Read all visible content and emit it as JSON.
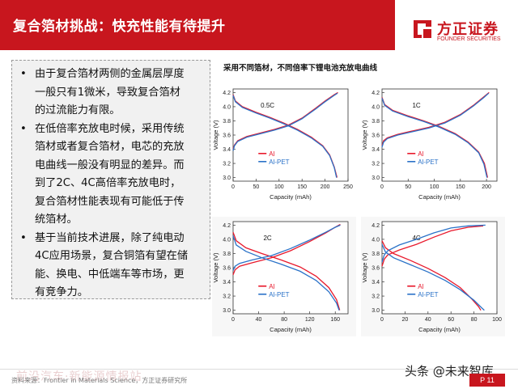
{
  "header": {
    "title": "复合箔材挑战：快充性能有待提升"
  },
  "logo": {
    "name_cn": "方正证券",
    "name_en": "FOUNDER SECURITIES",
    "brand_color": "#c8161e"
  },
  "bullets": [
    {
      "marker": "•",
      "lines": [
        "由于复合箔材两侧的金属层厚度",
        "一般只有1微米，导致复合箔材",
        "的过流能力有限。"
      ]
    },
    {
      "marker": "•",
      "lines": [
        "在低倍率充放电时候，采用传统",
        "箔材或者复合箔材，电芯的充放",
        "电曲线一般没有明显的差异。而",
        "到了2C、4C高倍率充放电时，",
        "复合箔材性能表现有可能低于传",
        "统箔材。"
      ]
    },
    {
      "marker": "•",
      "lines": [
        "基于当前技术进展，除了纯电动",
        "4C应用场景，复合铜箔有望在储",
        "能、换电、中低端车等市场，更",
        "有竞争力。"
      ]
    }
  ],
  "figure": {
    "title": "采用不同箔材，不同倍率下锂电池充放电曲线"
  },
  "chart_data": [
    {
      "type": "line",
      "title": "0.5C",
      "xlabel": "Capacity (mAh)",
      "ylabel": "Voltage (V)",
      "xlim": [
        0,
        250
      ],
      "ylim": [
        2.95,
        4.25
      ],
      "xticks": [
        "0",
        "50",
        "100",
        "150",
        "200",
        "250"
      ],
      "yticks": [
        "3.0",
        "3.2",
        "3.4",
        "3.6",
        "3.8",
        "4.0",
        "4.2"
      ],
      "legend": [
        "Al",
        "Al-PET"
      ],
      "legend_position": "bottom-left",
      "series": [
        {
          "name": "Al",
          "color": "#e8192c",
          "curves": [
            [
              [
                0,
                3.4
              ],
              [
                3,
                3.46
              ],
              [
                10,
                3.52
              ],
              [
                30,
                3.58
              ],
              [
                60,
                3.63
              ],
              [
                90,
                3.68
              ],
              [
                120,
                3.74
              ],
              [
                150,
                3.84
              ],
              [
                180,
                3.98
              ],
              [
                200,
                4.08
              ],
              [
                220,
                4.17
              ],
              [
                228,
                4.2
              ]
            ],
            [
              [
                0,
                4.17
              ],
              [
                5,
                4.08
              ],
              [
                20,
                4.0
              ],
              [
                50,
                3.92
              ],
              [
                80,
                3.85
              ],
              [
                110,
                3.77
              ],
              [
                140,
                3.68
              ],
              [
                170,
                3.57
              ],
              [
                195,
                3.45
              ],
              [
                210,
                3.32
              ],
              [
                220,
                3.15
              ],
              [
                226,
                3.0
              ]
            ]
          ]
        },
        {
          "name": "Al-PET",
          "color": "#2a72c8",
          "curves": [
            [
              [
                0,
                3.38
              ],
              [
                3,
                3.45
              ],
              [
                10,
                3.51
              ],
              [
                30,
                3.57
              ],
              [
                60,
                3.62
              ],
              [
                90,
                3.67
              ],
              [
                120,
                3.73
              ],
              [
                150,
                3.83
              ],
              [
                180,
                3.97
              ],
              [
                200,
                4.07
              ],
              [
                220,
                4.16
              ],
              [
                227,
                4.19
              ]
            ],
            [
              [
                0,
                4.16
              ],
              [
                5,
                4.07
              ],
              [
                20,
                3.99
              ],
              [
                50,
                3.91
              ],
              [
                80,
                3.84
              ],
              [
                110,
                3.76
              ],
              [
                140,
                3.67
              ],
              [
                170,
                3.56
              ],
              [
                195,
                3.44
              ],
              [
                210,
                3.31
              ],
              [
                220,
                3.14
              ],
              [
                225,
                3.0
              ]
            ]
          ]
        }
      ]
    },
    {
      "type": "line",
      "title": "1C",
      "xlabel": "Capacity (mAh)",
      "ylabel": "Voltage (V)",
      "xlim": [
        0,
        220
      ],
      "ylim": [
        2.95,
        4.25
      ],
      "xticks": [
        "0",
        "50",
        "100",
        "150",
        "200"
      ],
      "yticks": [
        "3.0",
        "3.2",
        "3.4",
        "3.6",
        "3.8",
        "4.0",
        "4.2"
      ],
      "legend": [
        "Al",
        "Al-PET"
      ],
      "legend_position": "bottom-left",
      "series": [
        {
          "name": "Al",
          "color": "#e8192c",
          "curves": [
            [
              [
                0,
                3.45
              ],
              [
                3,
                3.52
              ],
              [
                10,
                3.56
              ],
              [
                30,
                3.61
              ],
              [
                60,
                3.66
              ],
              [
                90,
                3.71
              ],
              [
                120,
                3.78
              ],
              [
                150,
                3.89
              ],
              [
                175,
                4.02
              ],
              [
                195,
                4.14
              ],
              [
                205,
                4.2
              ]
            ],
            [
              [
                0,
                4.13
              ],
              [
                5,
                4.03
              ],
              [
                20,
                3.95
              ],
              [
                50,
                3.87
              ],
              [
                80,
                3.8
              ],
              [
                110,
                3.72
              ],
              [
                140,
                3.62
              ],
              [
                165,
                3.5
              ],
              [
                185,
                3.36
              ],
              [
                196,
                3.2
              ],
              [
                202,
                3.0
              ]
            ]
          ]
        },
        {
          "name": "Al-PET",
          "color": "#2a72c8",
          "curves": [
            [
              [
                0,
                3.43
              ],
              [
                3,
                3.5
              ],
              [
                10,
                3.55
              ],
              [
                30,
                3.6
              ],
              [
                60,
                3.65
              ],
              [
                90,
                3.7
              ],
              [
                120,
                3.77
              ],
              [
                150,
                3.88
              ],
              [
                175,
                4.01
              ],
              [
                195,
                4.13
              ],
              [
                204,
                4.19
              ]
            ],
            [
              [
                0,
                4.12
              ],
              [
                5,
                4.02
              ],
              [
                20,
                3.94
              ],
              [
                50,
                3.86
              ],
              [
                80,
                3.79
              ],
              [
                110,
                3.71
              ],
              [
                140,
                3.61
              ],
              [
                165,
                3.49
              ],
              [
                185,
                3.35
              ],
              [
                195,
                3.19
              ],
              [
                201,
                3.0
              ]
            ]
          ]
        }
      ]
    },
    {
      "type": "line",
      "title": "2C",
      "xlabel": "Capacity (mAh)",
      "ylabel": "Voltage (V)",
      "xlim": [
        0,
        180
      ],
      "ylim": [
        2.95,
        4.25
      ],
      "xticks": [
        "0",
        "40",
        "80",
        "120",
        "160"
      ],
      "yticks": [
        "3.0",
        "3.2",
        "3.4",
        "3.6",
        "3.8",
        "4.0",
        "4.2"
      ],
      "legend": [
        "Al",
        "Al-PET"
      ],
      "legend_position": "bottom-left",
      "series": [
        {
          "name": "Al",
          "color": "#e8192c",
          "curves": [
            [
              [
                0,
                3.5
              ],
              [
                3,
                3.57
              ],
              [
                10,
                3.62
              ],
              [
                30,
                3.67
              ],
              [
                60,
                3.74
              ],
              [
                90,
                3.84
              ],
              [
                120,
                3.97
              ],
              [
                145,
                4.09
              ],
              [
                160,
                4.17
              ],
              [
                168,
                4.21
              ]
            ],
            [
              [
                0,
                4.1
              ],
              [
                5,
                3.98
              ],
              [
                20,
                3.88
              ],
              [
                45,
                3.8
              ],
              [
                75,
                3.71
              ],
              [
                105,
                3.61
              ],
              [
                130,
                3.48
              ],
              [
                150,
                3.32
              ],
              [
                162,
                3.15
              ],
              [
                167,
                3.0
              ]
            ]
          ]
        },
        {
          "name": "Al-PET",
          "color": "#2a72c8",
          "curves": [
            [
              [
                0,
                3.56
              ],
              [
                3,
                3.62
              ],
              [
                10,
                3.66
              ],
              [
                30,
                3.71
              ],
              [
                60,
                3.77
              ],
              [
                90,
                3.87
              ],
              [
                120,
                3.99
              ],
              [
                145,
                4.1
              ],
              [
                160,
                4.17
              ],
              [
                168,
                4.2
              ]
            ],
            [
              [
                0,
                4.05
              ],
              [
                5,
                3.92
              ],
              [
                20,
                3.83
              ],
              [
                45,
                3.74
              ],
              [
                75,
                3.65
              ],
              [
                105,
                3.55
              ],
              [
                130,
                3.42
              ],
              [
                150,
                3.26
              ],
              [
                162,
                3.1
              ],
              [
                166,
                3.0
              ]
            ]
          ]
        }
      ]
    },
    {
      "type": "line",
      "title": "4C",
      "xlabel": "Capacity (mAh)",
      "ylabel": "Voltage (V)",
      "xlim": [
        0,
        100
      ],
      "ylim": [
        2.95,
        4.25
      ],
      "xticks": [
        "0",
        "20",
        "40",
        "60",
        "80",
        "100"
      ],
      "yticks": [
        "3.0",
        "3.2",
        "3.4",
        "3.6",
        "3.8",
        "4.0",
        "4.2"
      ],
      "legend": [
        "Al",
        "Al-PET"
      ],
      "legend_position": "bottom-left",
      "series": [
        {
          "name": "Al",
          "color": "#e8192c",
          "curves": [
            [
              [
                0,
                3.62
              ],
              [
                2,
                3.72
              ],
              [
                5,
                3.78
              ],
              [
                15,
                3.85
              ],
              [
                30,
                3.93
              ],
              [
                45,
                4.03
              ],
              [
                60,
                4.12
              ],
              [
                75,
                4.17
              ],
              [
                88,
                4.19
              ]
            ],
            [
              [
                0,
                3.98
              ],
              [
                3,
                3.88
              ],
              [
                10,
                3.8
              ],
              [
                25,
                3.7
              ],
              [
                40,
                3.59
              ],
              [
                55,
                3.46
              ],
              [
                68,
                3.32
              ],
              [
                78,
                3.16
              ],
              [
                84,
                3.05
              ],
              [
                86,
                3.0
              ]
            ]
          ]
        },
        {
          "name": "Al-PET",
          "color": "#2a72c8",
          "curves": [
            [
              [
                0,
                3.68
              ],
              [
                2,
                3.78
              ],
              [
                5,
                3.84
              ],
              [
                15,
                3.92
              ],
              [
                30,
                4.0
              ],
              [
                45,
                4.09
              ],
              [
                60,
                4.16
              ],
              [
                75,
                4.19
              ],
              [
                90,
                4.2
              ]
            ],
            [
              [
                0,
                3.93
              ],
              [
                3,
                3.82
              ],
              [
                10,
                3.74
              ],
              [
                25,
                3.64
              ],
              [
                40,
                3.54
              ],
              [
                55,
                3.42
              ],
              [
                68,
                3.29
              ],
              [
                80,
                3.14
              ],
              [
                87,
                3.03
              ],
              [
                89,
                3.0
              ]
            ]
          ]
        }
      ]
    }
  ],
  "footer": {
    "source": "资料来源：Frontier in Materials Science，方正证券研究所",
    "watermark": "前沿汽车·新能源情报站",
    "page": "P 11",
    "toutiao": "头条 @未来智库"
  }
}
